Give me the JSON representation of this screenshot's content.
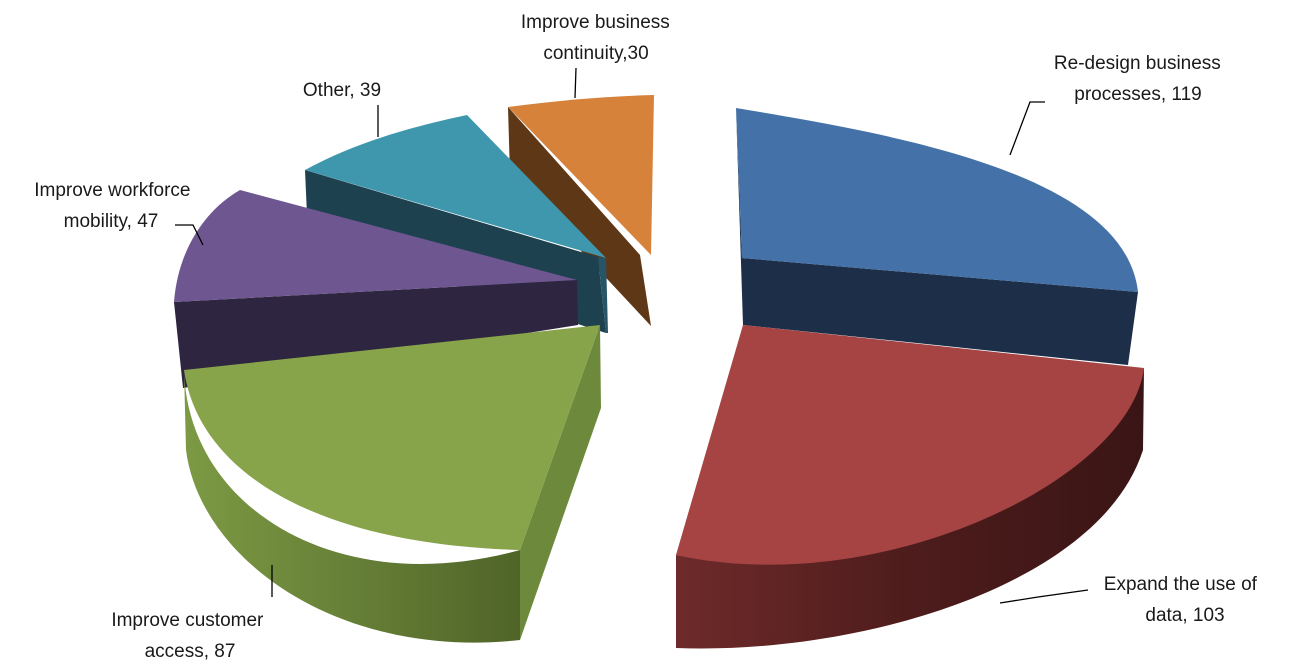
{
  "chart_data": {
    "type": "pie",
    "style": "3d-exploded",
    "legend": "none",
    "slices": [
      {
        "label_lines": [
          "Re-design business",
          "processes, 119"
        ],
        "value": 119,
        "color": "#4472A8"
      },
      {
        "label_lines": [
          "Expand the use of",
          "data, 103"
        ],
        "value": 103,
        "color": "#A64444"
      },
      {
        "label_lines": [
          "Improve customer",
          "access, 87"
        ],
        "value": 87,
        "color": "#88A44B"
      },
      {
        "label_lines": [
          "Improve workforce",
          "mobility, 47"
        ],
        "value": 47,
        "color": "#6E5690"
      },
      {
        "label_lines": [
          "Other, 39"
        ],
        "value": 39,
        "color": "#3F97AE"
      },
      {
        "label_lines": [
          "Improve business",
          "continuity,30"
        ],
        "value": 30,
        "color": "#D6823B"
      }
    ]
  }
}
